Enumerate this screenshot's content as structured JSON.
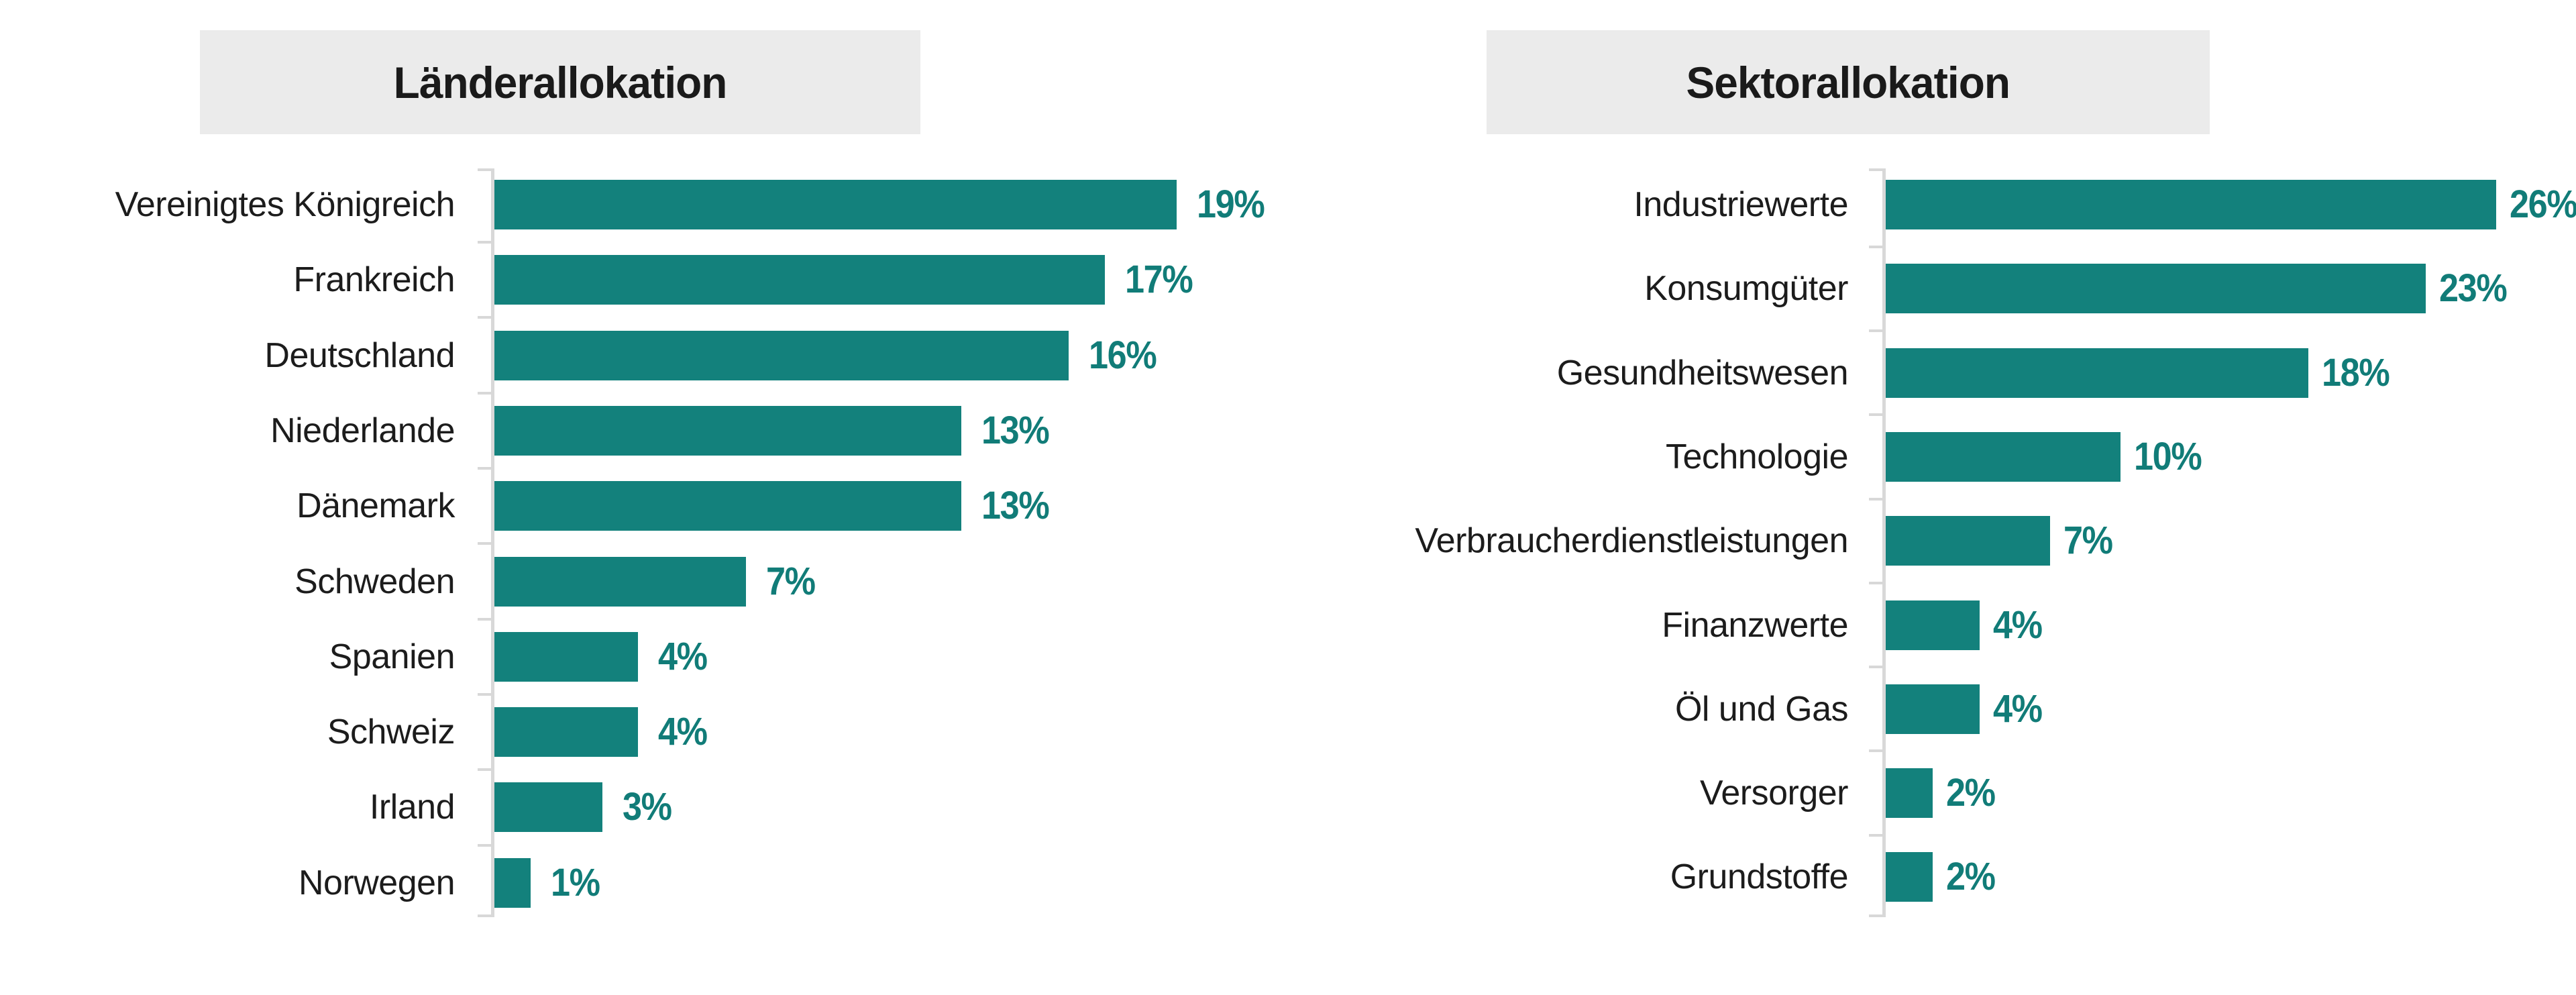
{
  "colors": {
    "background": "#FFFFFF",
    "bar": "#13817C",
    "value_label": "#117C78",
    "category_text": "#1C1C1C",
    "title_text": "#1A1A1A",
    "title_bg": "#EBEBEB",
    "axis": "#D8D8D8"
  },
  "chart_data": [
    {
      "type": "bar",
      "orientation": "horizontal",
      "title": "Länderallokation",
      "categories": [
        "Vereinigtes Königreich",
        "Frankreich",
        "Deutschland",
        "Niederlande",
        "Dänemark",
        "Schweden",
        "Spanien",
        "Schweiz",
        "Irland",
        "Norwegen"
      ],
      "values": [
        19,
        17,
        16,
        13,
        13,
        7,
        4,
        4,
        3,
        1
      ],
      "value_labels": [
        "19%",
        "17%",
        "16%",
        "13%",
        "13%",
        "7%",
        "4%",
        "4%",
        "3%",
        "1%"
      ],
      "unit": "percent",
      "value_axis_visible": false,
      "category_axis_visible": true,
      "tick_marks": true,
      "grid": false,
      "legend": false,
      "data_labels": "outside-end"
    },
    {
      "type": "bar",
      "orientation": "horizontal",
      "title": "Sektorallokation",
      "categories": [
        "Industriewerte",
        "Konsumgüter",
        "Gesundheitswesen",
        "Technologie",
        "Verbraucherdienstleistungen",
        "Finanzwerte",
        "Öl und Gas",
        "Versorger",
        "Grundstoffe"
      ],
      "values": [
        26,
        23,
        18,
        10,
        7,
        4,
        4,
        2,
        2
      ],
      "value_labels": [
        "26%",
        "23%",
        "18%",
        "10%",
        "7%",
        "4%",
        "4%",
        "2%",
        "2%"
      ],
      "unit": "percent",
      "value_axis_visible": false,
      "category_axis_visible": true,
      "tick_marks": true,
      "grid": false,
      "legend": false,
      "data_labels": "outside-end"
    }
  ]
}
